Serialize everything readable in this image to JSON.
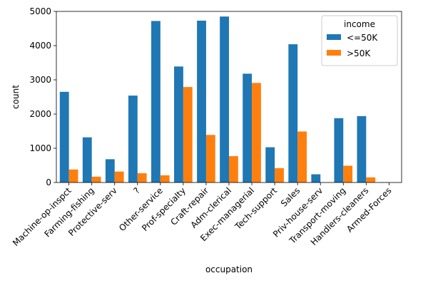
{
  "chart_data": {
    "type": "bar",
    "xlabel": "occupation",
    "ylabel": "count",
    "ylim": [
      0,
      5000
    ],
    "yticks": [
      0,
      1000,
      2000,
      3000,
      4000,
      5000
    ],
    "grid": false,
    "legend": {
      "title": "income",
      "placement": "top-right"
    },
    "categories": [
      "Machine-op-inspct",
      "Farming-fishing",
      "Protective-serv",
      "?",
      "Other-service",
      "Prof-specialty",
      "Craft-repair",
      "Adm-clerical",
      "Exec-managerial",
      "Tech-support",
      "Sales",
      "Priv-house-serv",
      "Transport-moving",
      "Handlers-cleaners",
      "Armed-Forces"
    ],
    "series": [
      {
        "name": "<=50K",
        "color": "#1f77b4",
        "values": [
          2650,
          1320,
          680,
          2540,
          4720,
          3390,
          4730,
          4850,
          3180,
          1030,
          4040,
          240,
          1880,
          1940,
          10
        ]
      },
      {
        "name": ">50K",
        "color": "#ff7f0e",
        "values": [
          380,
          170,
          320,
          270,
          210,
          2790,
          1390,
          770,
          2910,
          420,
          1490,
          3,
          490,
          150,
          3
        ]
      }
    ]
  }
}
